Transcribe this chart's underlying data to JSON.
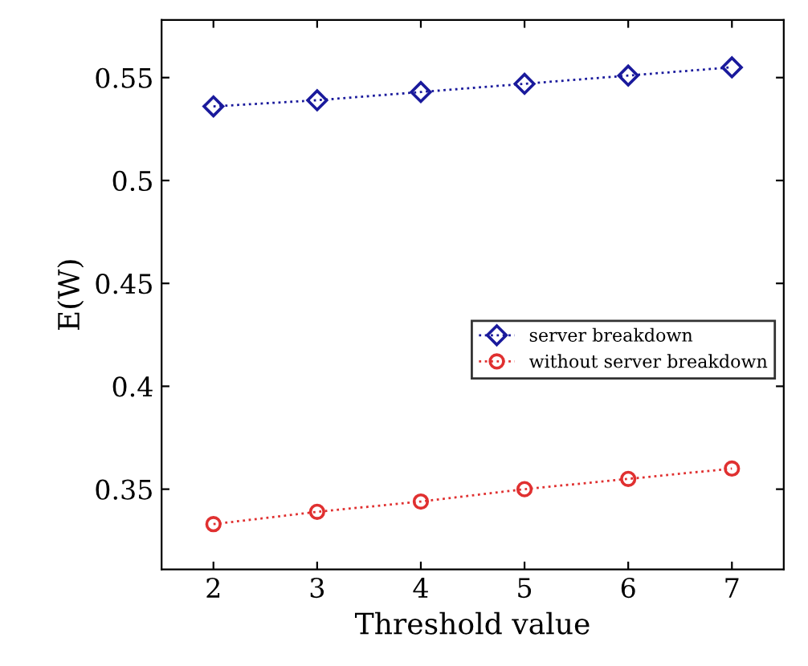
{
  "chart_data": {
    "type": "line",
    "xlabel": "Threshold value",
    "ylabel": "E(W)",
    "x": [
      2,
      3,
      4,
      5,
      6,
      7
    ],
    "series": [
      {
        "name": "server breakdown",
        "color": "#1a1a9c",
        "values": [
          0.536,
          0.539,
          0.543,
          0.547,
          0.551,
          0.555
        ],
        "marker": "diamond"
      },
      {
        "name": "without server breakdown",
        "color": "#e03030",
        "values": [
          0.333,
          0.339,
          0.344,
          0.35,
          0.355,
          0.36
        ],
        "marker": "circle"
      }
    ],
    "xlim": [
      1.5,
      7.5
    ],
    "ylim": [
      0.311,
      0.578
    ],
    "xticks": [
      2,
      3,
      4,
      5,
      6,
      7
    ],
    "yticks": [
      0.35,
      {
        "value": 0.4,
        "label": "0.4"
      },
      0.45,
      {
        "value": 0.5,
        "label": "0.5"
      },
      0.55
    ],
    "legend": "right",
    "line_style": "dotted",
    "grid": false
  }
}
